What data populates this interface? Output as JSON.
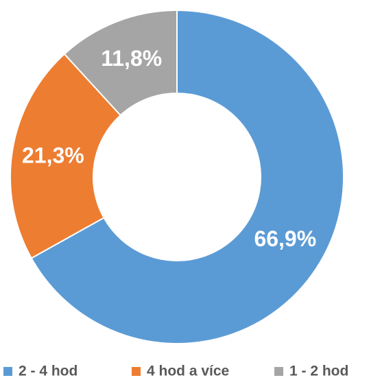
{
  "chart_data": {
    "type": "pie",
    "categories": [
      "2 - 4 hod",
      "4 hod a více",
      "1 - 2 hod"
    ],
    "values": [
      66.9,
      21.3,
      11.8
    ],
    "value_labels": [
      "66,9%",
      "21,3%",
      "11,8%"
    ],
    "colors": [
      "#5b9bd5",
      "#ed7d31",
      "#a5a5a5"
    ],
    "donut": true,
    "legend": "bottom"
  }
}
